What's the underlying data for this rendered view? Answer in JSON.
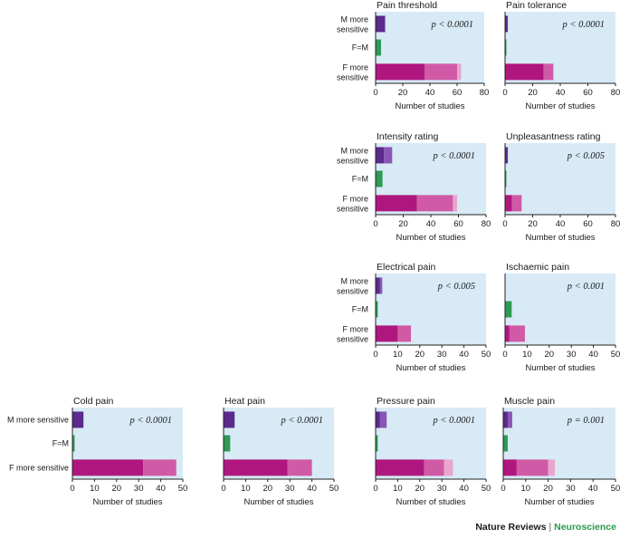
{
  "colors": {
    "panel_bg": "#d7eaf6",
    "m_dark": "#5b2a8c",
    "m_mid": "#8a55b5",
    "m_light": "#b593d6",
    "eq_dark": "#2e9b54",
    "f_dark": "#b0177e",
    "f_mid": "#d05aa5",
    "f_light": "#e8a6cd",
    "axis": "#222222"
  },
  "chart_data": [
    {
      "type": "bar",
      "title": "Pain threshold",
      "pvalue": "p < 0.0001",
      "categories": [
        "M more sensitive",
        "F=M",
        "F more sensitive"
      ],
      "xlabel": "Number of studies",
      "xlim": [
        0,
        80
      ],
      "xticks": [
        0,
        20,
        40,
        60,
        80
      ],
      "series": [
        {
          "values": [
            7,
            4,
            36
          ]
        },
        {
          "values": [
            0,
            0,
            24
          ]
        },
        {
          "values": [
            0,
            0,
            3
          ]
        }
      ]
    },
    {
      "type": "bar",
      "title": "Pain tolerance",
      "pvalue": "p < 0.0001",
      "categories": [
        "M more sensitive",
        "F=M",
        "F more sensitive"
      ],
      "xlabel": "Number of studies",
      "xlim": [
        0,
        80
      ],
      "xticks": [
        0,
        20,
        40,
        60,
        80
      ],
      "series": [
        {
          "values": [
            2,
            1,
            28
          ]
        },
        {
          "values": [
            0,
            0,
            7
          ]
        },
        {
          "values": [
            0,
            0,
            0
          ]
        }
      ]
    },
    {
      "type": "bar",
      "title": "Intensity rating",
      "pvalue": "p < 0.0001",
      "categories": [
        "M more sensitive",
        "F=M",
        "F more sensitive"
      ],
      "xlabel": "Number of studies",
      "xlim": [
        0,
        80
      ],
      "xticks": [
        0,
        20,
        40,
        60,
        80
      ],
      "series": [
        {
          "values": [
            6,
            5,
            30
          ]
        },
        {
          "values": [
            6,
            0,
            26
          ]
        },
        {
          "values": [
            0,
            0,
            3
          ]
        }
      ]
    },
    {
      "type": "bar",
      "title": "Unpleasantness rating",
      "pvalue": "p < 0.005",
      "categories": [
        "M more sensitive",
        "F=M",
        "F more sensitive"
      ],
      "xlabel": "Number of studies",
      "xlim": [
        0,
        80
      ],
      "xticks": [
        0,
        20,
        40,
        60,
        80
      ],
      "series": [
        {
          "values": [
            2,
            1,
            5
          ]
        },
        {
          "values": [
            0,
            0,
            7
          ]
        },
        {
          "values": [
            0,
            0,
            0
          ]
        }
      ]
    },
    {
      "type": "bar",
      "title": "Electrical pain",
      "pvalue": "p < 0.005",
      "categories": [
        "M more sensitive",
        "F=M",
        "F more sensitive"
      ],
      "xlabel": "Number of studies",
      "xlim": [
        0,
        50
      ],
      "xticks": [
        0,
        10,
        20,
        30,
        40,
        50
      ],
      "series": [
        {
          "values": [
            2,
            1,
            10
          ]
        },
        {
          "values": [
            1,
            0,
            6
          ]
        },
        {
          "values": [
            0,
            0,
            0
          ]
        }
      ]
    },
    {
      "type": "bar",
      "title": "Ischaemic pain",
      "pvalue": "p < 0.001",
      "categories": [
        "M more sensitive",
        "F=M",
        "F more sensitive"
      ],
      "xlabel": "Number of studies",
      "xlim": [
        0,
        50
      ],
      "xticks": [
        0,
        10,
        20,
        30,
        40,
        50
      ],
      "series": [
        {
          "values": [
            0,
            3,
            2
          ]
        },
        {
          "values": [
            0,
            0,
            7
          ]
        },
        {
          "values": [
            0,
            0,
            0
          ]
        }
      ]
    },
    {
      "type": "bar",
      "title": "Cold pain",
      "pvalue": "p < 0.0001",
      "categories": [
        "M more sensitive",
        "F=M",
        "F more sensitive"
      ],
      "xlabel": "Number of studies",
      "xlim": [
        0,
        50
      ],
      "xticks": [
        0,
        10,
        20,
        30,
        40,
        50
      ],
      "series": [
        {
          "values": [
            5,
            1,
            32
          ]
        },
        {
          "values": [
            0,
            0,
            15
          ]
        },
        {
          "values": [
            0,
            0,
            0
          ]
        }
      ]
    },
    {
      "type": "bar",
      "title": "Heat pain",
      "pvalue": "p < 0.0001",
      "categories": [
        "M more sensitive",
        "F=M",
        "F more sensitive"
      ],
      "xlabel": "Number of studies",
      "xlim": [
        0,
        50
      ],
      "xticks": [
        0,
        10,
        20,
        30,
        40,
        50
      ],
      "series": [
        {
          "values": [
            5,
            3,
            29
          ]
        },
        {
          "values": [
            0,
            0,
            11
          ]
        },
        {
          "values": [
            0,
            0,
            0
          ]
        }
      ]
    },
    {
      "type": "bar",
      "title": "Pressure  pain",
      "pvalue": "p < 0.0001",
      "categories": [
        "M more sensitive",
        "F=M",
        "F more sensitive"
      ],
      "xlabel": "Number of studies",
      "xlim": [
        0,
        50
      ],
      "xticks": [
        0,
        10,
        20,
        30,
        40,
        50
      ],
      "series": [
        {
          "values": [
            2,
            1,
            22
          ]
        },
        {
          "values": [
            3,
            0,
            9
          ]
        },
        {
          "values": [
            0,
            0,
            4
          ]
        }
      ]
    },
    {
      "type": "bar",
      "title": "Muscle  pain",
      "pvalue": "p = 0.001",
      "categories": [
        "M more sensitive",
        "F=M",
        "F more sensitive"
      ],
      "xlabel": "Number of studies",
      "xlim": [
        0,
        50
      ],
      "xticks": [
        0,
        10,
        20,
        30,
        40,
        50
      ],
      "series": [
        {
          "values": [
            2,
            2,
            6
          ]
        },
        {
          "values": [
            2,
            0,
            14
          ]
        },
        {
          "values": [
            0,
            0,
            3
          ]
        }
      ]
    }
  ],
  "credit": {
    "publisher": "Nature Reviews",
    "separator": "|",
    "journal": "Neuroscience"
  }
}
